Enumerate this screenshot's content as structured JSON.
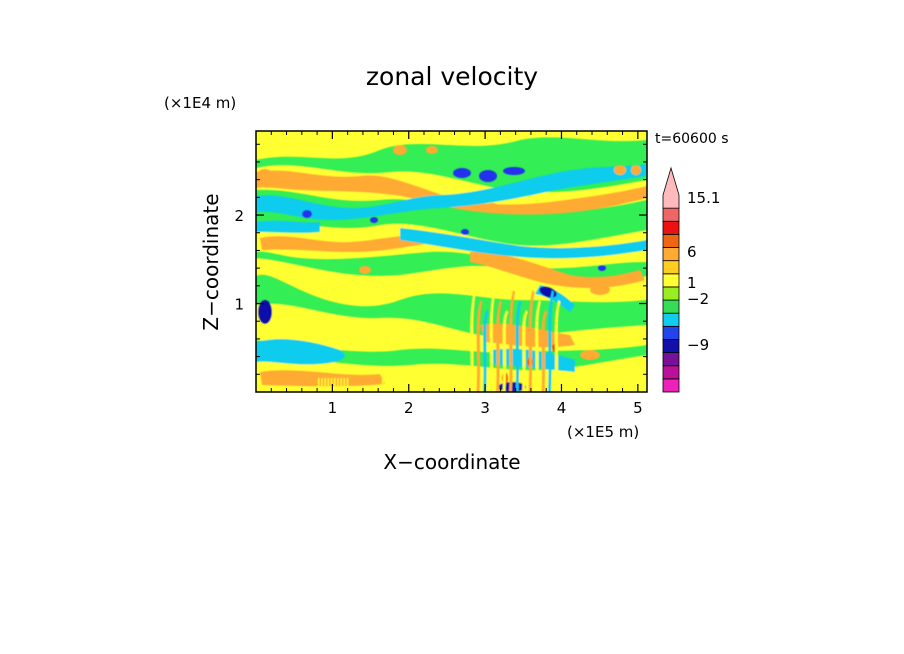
{
  "chart_data": {
    "type": "heatmap",
    "title": "zonal velocity",
    "xlabel": "X−coordinate",
    "ylabel": "Z−coordinate",
    "x_unit": "(×1E5 m)",
    "y_unit": "(×1E4 m)",
    "time_label": "t=60600 s",
    "x_ticks": [
      {
        "value": 1,
        "label": "1"
      },
      {
        "value": 2,
        "label": "2"
      },
      {
        "value": 3,
        "label": "3"
      },
      {
        "value": 4,
        "label": "4"
      },
      {
        "value": 5,
        "label": "5"
      }
    ],
    "y_ticks": [
      {
        "value": 1,
        "label": "1"
      },
      {
        "value": 2,
        "label": "2"
      }
    ],
    "xlim": [
      0,
      5.12
    ],
    "ylim": [
      0,
      2.95
    ],
    "colorbar": {
      "levels": [
        {
          "color": "#ee22bb"
        },
        {
          "color": "#bb1199"
        },
        {
          "color": "#771199"
        },
        {
          "color": "#1111aa"
        },
        {
          "color": "#2244ee"
        },
        {
          "color": "#11ccee"
        },
        {
          "color": "#33dd55"
        },
        {
          "color": "#99ee22"
        },
        {
          "color": "#ffff33"
        },
        {
          "color": "#ffcc22"
        },
        {
          "color": "#ffaa33"
        },
        {
          "color": "#ee6611"
        },
        {
          "color": "#ee1111"
        },
        {
          "color": "#ee6666"
        },
        {
          "color": "#ffbbbb"
        }
      ],
      "labels": [
        {
          "text": "15.1"
        },
        {
          "text": "6"
        },
        {
          "text": "1"
        },
        {
          "text": "−2"
        },
        {
          "text": "−9"
        }
      ]
    },
    "field_colors": {
      "background": "#33ee55",
      "yellow": "#ffff33",
      "orange": "#ffaa33",
      "cyan": "#11ccee",
      "blue": "#2233ee",
      "darkblue": "#1111aa",
      "red": "#ee4411"
    }
  }
}
